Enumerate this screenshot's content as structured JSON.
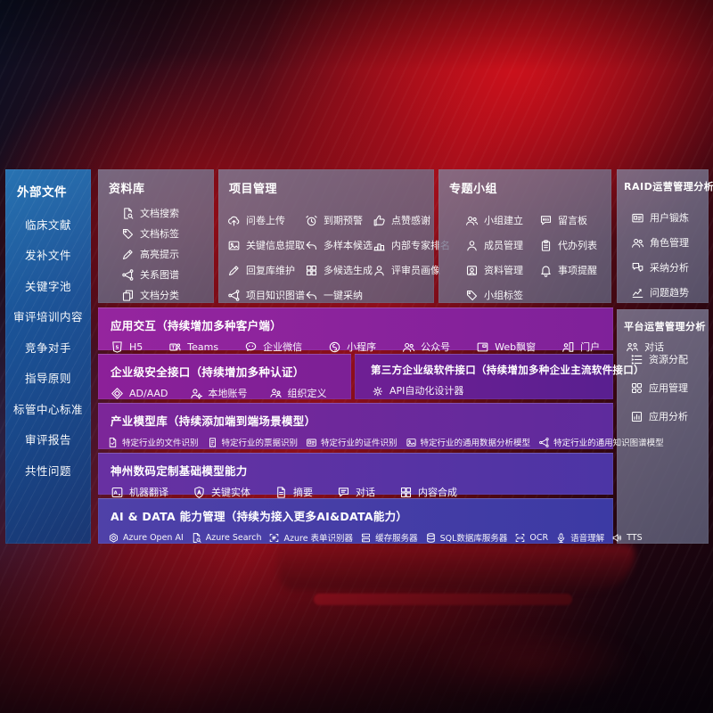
{
  "colors": {
    "sidebar_blue": "#1d5ba4",
    "panel_slate": "#6e7288",
    "row_magenta": "#95259e",
    "row_indigo": "#3c3aa4",
    "background_red": "#8f0e1b",
    "text": "#ffffff"
  },
  "sidebar": {
    "title": "外部文件",
    "items": [
      "临床文献",
      "发补文件",
      "关键字池",
      "审评培训内容",
      "竞争对手",
      "指导原则",
      "标管中心标准",
      "审评报告",
      "共性问题"
    ]
  },
  "panels": {
    "repo": {
      "title": "资料库",
      "columns": [
        [
          {
            "icon": "doc-search",
            "label": "文档搜索"
          },
          {
            "icon": "tag",
            "label": "文档标签"
          },
          {
            "icon": "pencil",
            "label": "高亮提示"
          },
          {
            "icon": "network",
            "label": "关系图谱"
          },
          {
            "icon": "copy",
            "label": "文档分类"
          }
        ]
      ]
    },
    "project": {
      "title": "项目管理",
      "columns": [
        [
          {
            "icon": "cloud-up",
            "label": "问卷上传"
          },
          {
            "icon": "image",
            "label": "关键信息提取"
          },
          {
            "icon": "pencil",
            "label": "回复库维护"
          },
          {
            "icon": "network",
            "label": "项目知识图谱"
          }
        ],
        [
          {
            "icon": "alarm",
            "label": "到期预警"
          },
          {
            "icon": "reply",
            "label": "多样本候选"
          },
          {
            "icon": "puzzle",
            "label": "多候选生成"
          },
          {
            "icon": "reply",
            "label": "一键采纳"
          }
        ],
        [
          {
            "icon": "thumb",
            "label": "点赞感谢"
          },
          {
            "icon": "podium",
            "label": "内部专家排名"
          },
          {
            "icon": "person",
            "label": "评审员画像"
          }
        ]
      ]
    },
    "group": {
      "title": "专题小组",
      "columns": [
        [
          {
            "icon": "people",
            "label": "小组建立"
          },
          {
            "icon": "person",
            "label": "成员管理"
          },
          {
            "icon": "album",
            "label": "资料管理"
          },
          {
            "icon": "tag",
            "label": "小组标签"
          }
        ],
        [
          {
            "icon": "bbs",
            "label": "留言板"
          },
          {
            "icon": "clipboard",
            "label": "代办列表"
          },
          {
            "icon": "bell",
            "label": "事项提醒"
          }
        ]
      ]
    },
    "raid": {
      "title": "RAID运营管理分析",
      "columns": [
        [
          {
            "icon": "idcard",
            "label": "用户锻炼"
          },
          {
            "icon": "people",
            "label": "角色管理"
          },
          {
            "icon": "qa",
            "label": "采纳分析"
          },
          {
            "icon": "trend",
            "label": "问题趋势"
          }
        ]
      ]
    },
    "platform": {
      "title": "平台运营管理分析",
      "columns": [
        [
          {
            "icon": "list",
            "label": "资源分配"
          },
          {
            "icon": "grid",
            "label": "应用管理"
          },
          {
            "icon": "app-chart",
            "label": "应用分析"
          }
        ]
      ]
    },
    "interact": {
      "title": "应用交互（持续增加多种客户端）",
      "items": [
        {
          "icon": "h5",
          "label": "H5"
        },
        {
          "icon": "teams",
          "label": "Teams"
        },
        {
          "icon": "wechat",
          "label": "企业微信"
        },
        {
          "icon": "miniapp",
          "label": "小程序"
        },
        {
          "icon": "people",
          "label": "公众号"
        },
        {
          "icon": "float-window",
          "label": "Web飘窗"
        },
        {
          "icon": "portal",
          "label": "门户"
        },
        {
          "icon": "dialog",
          "label": "对话"
        }
      ]
    },
    "security": {
      "title": "企业级安全接口（持续增加多种认证）",
      "items": [
        {
          "icon": "ad",
          "label": "AD/AAD"
        },
        {
          "icon": "person-gear",
          "label": "本地账号"
        },
        {
          "icon": "org",
          "label": "组织定义"
        }
      ]
    },
    "thirdparty": {
      "title": "第三方企业级软件接口（持续增加多种企业主流软件接口）",
      "items": [
        {
          "icon": "api-gear",
          "label": "API自动化设计器"
        }
      ]
    },
    "models": {
      "title": "产业模型库（持续添加端到端场景模型）",
      "items": [
        {
          "icon": "doc-check",
          "label": "特定行业的文件识别"
        },
        {
          "icon": "receipt",
          "label": "特定行业的票据识别"
        },
        {
          "icon": "idcard",
          "label": "特定行业的证件识别"
        },
        {
          "icon": "image",
          "label": "特定行业的通用数据分析模型"
        },
        {
          "icon": "network",
          "label": "特定行业的通用知识图谱模型"
        }
      ]
    },
    "base_models": {
      "title": "神州数码定制基础模型能力",
      "items": [
        {
          "icon": "translate",
          "label": "机器翻译"
        },
        {
          "icon": "shield-a",
          "label": "关键实体"
        },
        {
          "icon": "doc",
          "label": "摘要"
        },
        {
          "icon": "chat",
          "label": "对话"
        },
        {
          "icon": "puzzle",
          "label": "内容合成"
        }
      ]
    },
    "aidata": {
      "title": "AI & DATA 能力管理（持续为接入更多AI&DATA能力）",
      "items": [
        {
          "icon": "openai",
          "label": "Azure Open AI"
        },
        {
          "icon": "doc-search",
          "label": "Azure Search"
        },
        {
          "icon": "form-scan",
          "label": "Azure 表单识别器"
        },
        {
          "icon": "server-stack",
          "label": "缓存服务器"
        },
        {
          "icon": "db",
          "label": "SQL数据库服务器"
        },
        {
          "icon": "ocr",
          "label": "OCR"
        },
        {
          "icon": "mic",
          "label": "语音理解"
        },
        {
          "icon": "speaker",
          "label": "TTS"
        }
      ]
    }
  }
}
